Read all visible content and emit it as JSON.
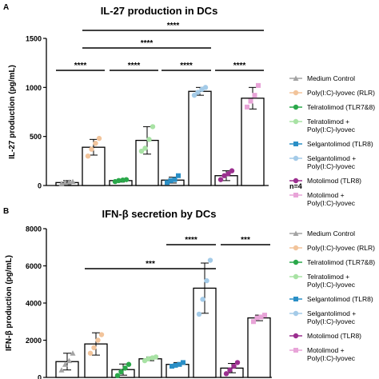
{
  "chart_data": [
    {
      "panel": "A",
      "type": "bar",
      "title": "IL-27 production in DCs",
      "xlabel": "",
      "ylabel": "IL-27 production (pg/mL)",
      "ylim": [
        0,
        1500
      ],
      "yticks": [
        0,
        500,
        1000,
        1500
      ],
      "grid": false,
      "legend_position": "right",
      "annotation": "n=4",
      "categories": [
        "Medium Control",
        "Poly(I:C)-lyovec (RLR)",
        "Telratolimod (TLR7&8)",
        "Telratolimod + Poly(I:C)-lyovec",
        "Selgantolimod (TLR8)",
        "Selgantolimod + Poly(I:C)-lyovec",
        "Motolimod (TLR8)",
        "Motolimod + Poly(I:C)-lyovec"
      ],
      "values": [
        30,
        390,
        50,
        460,
        55,
        960,
        100,
        890
      ],
      "errors": [
        20,
        80,
        15,
        140,
        30,
        40,
        50,
        110
      ],
      "points": [
        [
          20,
          30,
          35,
          40
        ],
        [
          300,
          370,
          430,
          480
        ],
        [
          40,
          50,
          55,
          60
        ],
        [
          350,
          380,
          470,
          600
        ],
        [
          30,
          50,
          60,
          100
        ],
        [
          920,
          950,
          980,
          1000
        ],
        [
          60,
          100,
          120,
          150
        ],
        [
          800,
          860,
          920,
          1020
        ]
      ],
      "significance": [
        {
          "from": 0,
          "to": 1,
          "label": "****"
        },
        {
          "from": 2,
          "to": 3,
          "label": "****"
        },
        {
          "from": 4,
          "to": 5,
          "label": "****"
        },
        {
          "from": 6,
          "to": 7,
          "label": "****"
        },
        {
          "from": 1,
          "to": 5,
          "label": "****"
        },
        {
          "from": 1,
          "to": 7,
          "label": "****"
        }
      ]
    },
    {
      "panel": "B",
      "type": "bar",
      "title": "IFN-β secretion by DCs",
      "xlabel": "",
      "ylabel": "IFN-β production (pg/mL)",
      "ylim": [
        0,
        8000
      ],
      "yticks": [
        0,
        2000,
        4000,
        6000,
        8000
      ],
      "grid": false,
      "legend_position": "right",
      "categories": [
        "Medium Control",
        "Poly(I:C)-lyovec (RLR)",
        "Telratolimod (TLR7&8)",
        "Telratolimod + Poly(I:C)-lyovec",
        "Selgantolimod (TLR8)",
        "Selgantolimod + Poly(I:C)-lyovec",
        "Motolimod (TLR8)",
        "Motolimod + Poly(I:C)-lyovec"
      ],
      "values": [
        850,
        1800,
        420,
        1000,
        700,
        4800,
        500,
        3200
      ],
      "errors": [
        450,
        600,
        300,
        100,
        100,
        1350,
        250,
        150
      ],
      "points": [
        [
          400,
          700,
          900,
          1300
        ],
        [
          1300,
          1600,
          2000,
          2300
        ],
        [
          100,
          300,
          500,
          700
        ],
        [
          900,
          1000,
          1050,
          1100
        ],
        [
          600,
          650,
          700,
          800
        ],
        [
          3400,
          4200,
          5200,
          6300
        ],
        [
          200,
          400,
          600,
          800
        ],
        [
          3000,
          3200,
          3250,
          3350
        ]
      ],
      "significance": [
        {
          "from": 1,
          "to": 5,
          "label": "***"
        },
        {
          "from": 4,
          "to": 5,
          "label": "****"
        },
        {
          "from": 6,
          "to": 7,
          "label": "***"
        }
      ]
    }
  ],
  "legend": {
    "items": [
      {
        "label": "Medium Control",
        "color": "#a3a3a3"
      },
      {
        "label": "Poly(I:C)-lyovec (RLR)",
        "color": "#f2c49b"
      },
      {
        "label": "Telratolimod (TLR7&8)",
        "color": "#2aa84a"
      },
      {
        "label": "Telratolimod + Poly(I:C)-lyovec",
        "color": "#a8e2a4"
      },
      {
        "label": "Selgantolimod (TLR8)",
        "color": "#2a8fc6"
      },
      {
        "label": "Selgantolimod + Poly(I:C)-lyovec",
        "color": "#a4cbe8"
      },
      {
        "label": "Motolimod (TLR8)",
        "color": "#9b2f8f"
      },
      {
        "label": "Motolimod + Poly(I:C)-lyovec",
        "color": "#e8a4d8"
      }
    ]
  }
}
